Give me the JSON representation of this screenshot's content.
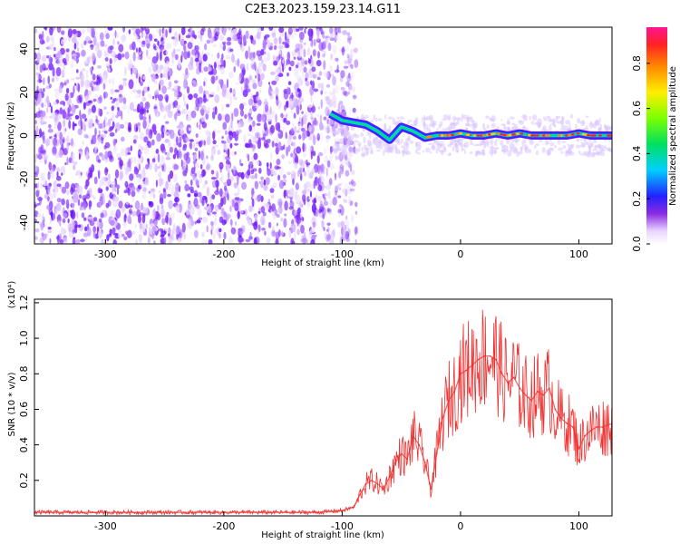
{
  "title": "C2E3.2023.159.23.14.G11",
  "spectrogram": {
    "type": "heatmap",
    "ylabel": "Frequency (Hz)",
    "xlabel": "Height of straight line (km)",
    "xlim": [
      -360,
      128
    ],
    "ylim": [
      -50,
      50
    ],
    "xticks": [
      -300,
      -200,
      -100,
      0,
      100
    ],
    "yticks": [
      -40,
      -20,
      0,
      20,
      40
    ],
    "noise_region_x": [
      -360,
      -88
    ],
    "signal_track": {
      "x": [
        -110,
        -100,
        -90,
        -80,
        -70,
        -60,
        -50,
        -40,
        -30,
        -20,
        -10,
        0,
        10,
        20,
        30,
        40,
        50,
        60,
        70,
        80,
        90,
        100,
        110,
        120,
        128
      ],
      "y": [
        10,
        7,
        6,
        5,
        2,
        -2,
        4,
        2,
        -1,
        0,
        0,
        1,
        0,
        0,
        1,
        0,
        1,
        0,
        0,
        0,
        0,
        1,
        0,
        0,
        0
      ]
    },
    "colorbar": {
      "label": "Normalized spectral amplitude",
      "ticks": [
        0.0,
        0.2,
        0.4,
        0.6,
        0.8
      ],
      "tick_labels": [
        "0.0",
        "0.2",
        "0.4",
        "0.6",
        "0.8"
      ],
      "range": [
        0,
        0.96
      ]
    }
  },
  "chart_data": {
    "type": "line",
    "title": "C2E3.2023.159.23.14.G11",
    "xlabel": "Height of straight line (km)",
    "ylabel": "SNR (10 * v/v)",
    "y_scale_note": "(x10⁴)",
    "xlim": [
      -360,
      128
    ],
    "ylim": [
      0,
      1.22
    ],
    "xticks": [
      -300,
      -200,
      -100,
      0,
      100
    ],
    "yticks": [
      0.2,
      0.4,
      0.6,
      0.8,
      1.0,
      1.2
    ],
    "ytick_labels": [
      "0.2",
      "0.4",
      "0.6",
      "0.8",
      "1.0",
      "1.2"
    ],
    "color": "#ee3333",
    "series": [
      {
        "x": [
          -360,
          -320,
          -280,
          -240,
          -200,
          -160,
          -120,
          -100,
          -90,
          -85,
          -80,
          -75,
          -70,
          -65,
          -60,
          -55,
          -50,
          -45,
          -40,
          -35,
          -30,
          -25,
          -20,
          -15,
          -10,
          -5,
          0,
          5,
          10,
          15,
          20,
          25,
          30,
          35,
          40,
          45,
          50,
          55,
          60,
          65,
          70,
          75,
          80,
          85,
          90,
          95,
          100,
          105,
          110,
          115,
          120,
          128
        ],
        "y": [
          0.02,
          0.02,
          0.02,
          0.02,
          0.02,
          0.02,
          0.02,
          0.03,
          0.05,
          0.12,
          0.18,
          0.2,
          0.18,
          0.15,
          0.22,
          0.3,
          0.35,
          0.32,
          0.45,
          0.4,
          0.3,
          0.15,
          0.35,
          0.55,
          0.65,
          0.7,
          0.8,
          0.82,
          0.85,
          0.88,
          0.9,
          0.9,
          0.88,
          0.8,
          0.75,
          0.78,
          0.72,
          0.68,
          0.65,
          0.7,
          0.68,
          0.72,
          0.6,
          0.55,
          0.52,
          0.5,
          0.38,
          0.45,
          0.48,
          0.5,
          0.5,
          0.52
        ]
      }
    ]
  }
}
